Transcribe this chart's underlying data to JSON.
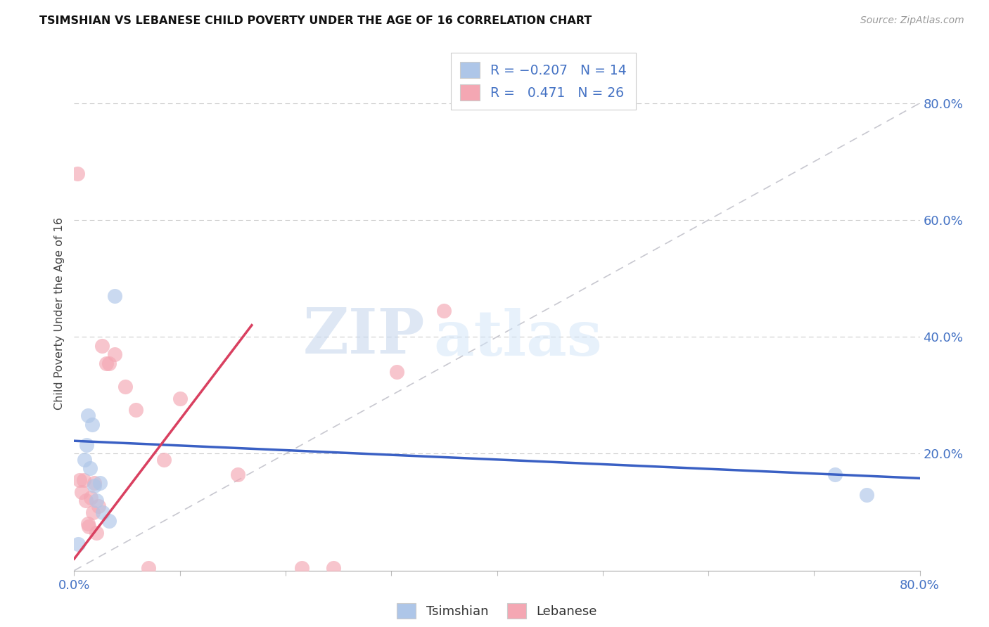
{
  "title": "TSIMSHIAN VS LEBANESE CHILD POVERTY UNDER THE AGE OF 16 CORRELATION CHART",
  "source": "Source: ZipAtlas.com",
  "ylabel": "Child Poverty Under the Age of 16",
  "xlim": [
    0.0,
    0.8
  ],
  "ylim": [
    0.0,
    0.88
  ],
  "tsimshian_color": "#aec6e8",
  "lebanese_color": "#f4a7b3",
  "tsimshian_line_color": "#3a60c4",
  "lebanese_line_color": "#d94060",
  "diagonal_color": "#c8c8d0",
  "watermark_zip": "ZIP",
  "watermark_atlas": "atlas",
  "tsimshian_x": [
    0.004,
    0.01,
    0.012,
    0.013,
    0.015,
    0.017,
    0.019,
    0.021,
    0.024,
    0.027,
    0.033,
    0.038,
    0.72,
    0.75
  ],
  "tsimshian_y": [
    0.045,
    0.19,
    0.215,
    0.265,
    0.175,
    0.25,
    0.145,
    0.12,
    0.15,
    0.1,
    0.085,
    0.47,
    0.165,
    0.13
  ],
  "lebanese_x": [
    0.003,
    0.005,
    0.007,
    0.009,
    0.011,
    0.013,
    0.014,
    0.016,
    0.018,
    0.019,
    0.021,
    0.023,
    0.026,
    0.03,
    0.033,
    0.038,
    0.048,
    0.058,
    0.07,
    0.085,
    0.1,
    0.155,
    0.215,
    0.245,
    0.305,
    0.35
  ],
  "lebanese_y": [
    0.68,
    0.155,
    0.135,
    0.155,
    0.12,
    0.08,
    0.075,
    0.125,
    0.1,
    0.15,
    0.065,
    0.11,
    0.385,
    0.355,
    0.355,
    0.37,
    0.315,
    0.275,
    0.005,
    0.19,
    0.295,
    0.165,
    0.005,
    0.005,
    0.34,
    0.445
  ],
  "tsim_line_x0": 0.0,
  "tsim_line_x1": 0.8,
  "tsim_line_y0": 0.222,
  "tsim_line_y1": 0.158,
  "leb_line_x0": 0.0,
  "leb_line_x1": 0.168,
  "leb_line_y0": 0.02,
  "leb_line_y1": 0.42
}
